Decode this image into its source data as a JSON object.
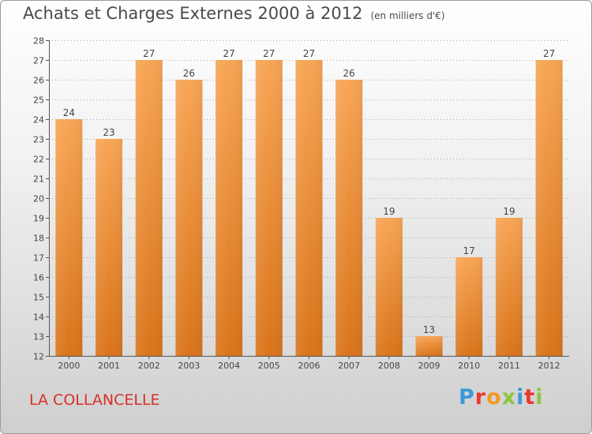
{
  "header": {
    "title": "Achats et Charges Externes 2000 à 2012",
    "subtitle": "(en milliers d'€)"
  },
  "footer": {
    "commune": "LA COLLANCELLE",
    "brand": "Proxiti",
    "brand_colors": [
      "#3a9ad9",
      "#e8382e",
      "#f29a1f",
      "#8cc63f",
      "#3a9ad9",
      "#e8382e",
      "#8cc63f"
    ]
  },
  "colors": {
    "bar_top": "#f7a555",
    "bar_bottom": "#d9741a",
    "axis": "#555555",
    "grid": "#aaaaaa",
    "text": "#444444"
  },
  "chart_data": {
    "type": "bar",
    "title": "Achats et Charges Externes 2000 à 2012",
    "subtitle": "(en milliers d'€)",
    "categories": [
      "2000",
      "2001",
      "2002",
      "2003",
      "2004",
      "2005",
      "2006",
      "2007",
      "2008",
      "2009",
      "2010",
      "2011",
      "2012"
    ],
    "values": [
      24,
      23,
      27,
      26,
      27,
      27,
      27,
      26,
      19,
      13,
      17,
      19,
      27
    ],
    "ylim": [
      12,
      28
    ],
    "yticks": [
      12,
      13,
      14,
      15,
      16,
      17,
      18,
      19,
      20,
      21,
      22,
      23,
      24,
      25,
      26,
      27,
      28
    ],
    "xlabel": "",
    "ylabel": "",
    "grid": true,
    "legend": "none"
  }
}
